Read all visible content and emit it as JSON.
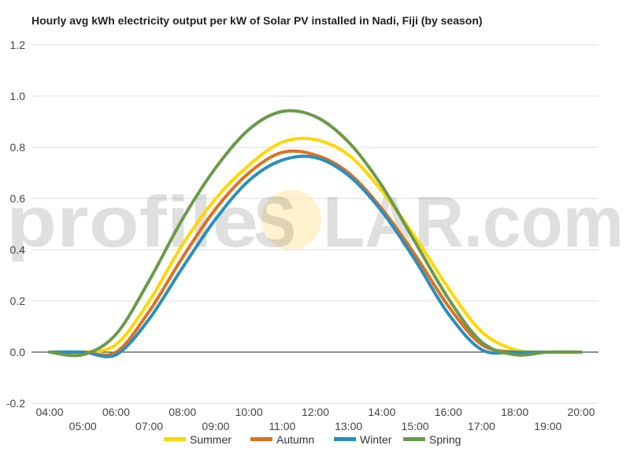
{
  "chart_data": {
    "type": "line",
    "title": "Hourly avg kWh electricity output per kW of Solar PV installed in Nadi, Fiji (by season)",
    "xlabel": "",
    "ylabel": "",
    "x": [
      "04:00",
      "05:00",
      "06:00",
      "07:00",
      "08:00",
      "09:00",
      "10:00",
      "11:00",
      "12:00",
      "13:00",
      "14:00",
      "15:00",
      "16:00",
      "17:00",
      "18:00",
      "19:00",
      "20:00"
    ],
    "ylim": [
      -0.2,
      1.2
    ],
    "yticks": [
      "1.2",
      "1.0",
      "0.8",
      "0.6",
      "0.4",
      "0.2",
      "0.0",
      "-0.2"
    ],
    "grid": true,
    "legend_position": "bottom",
    "series": [
      {
        "name": "Summer",
        "color": "#FFD700",
        "values": [
          0.0,
          0.0,
          0.03,
          0.2,
          0.42,
          0.6,
          0.73,
          0.82,
          0.83,
          0.77,
          0.63,
          0.45,
          0.25,
          0.08,
          0.01,
          0.0,
          0.0
        ]
      },
      {
        "name": "Autumn",
        "color": "#E07020",
        "values": [
          0.0,
          0.0,
          0.0,
          0.16,
          0.37,
          0.56,
          0.7,
          0.78,
          0.77,
          0.7,
          0.56,
          0.38,
          0.18,
          0.03,
          0.0,
          0.0,
          0.0
        ]
      },
      {
        "name": "Winter",
        "color": "#2A8FBD",
        "values": [
          0.0,
          0.0,
          -0.01,
          0.13,
          0.33,
          0.52,
          0.67,
          0.75,
          0.76,
          0.69,
          0.55,
          0.36,
          0.15,
          0.01,
          0.0,
          0.0,
          0.0
        ]
      },
      {
        "name": "Spring",
        "color": "#6A9A4A",
        "values": [
          0.0,
          -0.01,
          0.07,
          0.28,
          0.52,
          0.72,
          0.87,
          0.94,
          0.92,
          0.82,
          0.65,
          0.43,
          0.21,
          0.04,
          -0.01,
          0.0,
          0.0
        ]
      }
    ]
  },
  "watermark": {
    "part1": "profile",
    "part2": "S",
    "part3": "LAR.com"
  }
}
